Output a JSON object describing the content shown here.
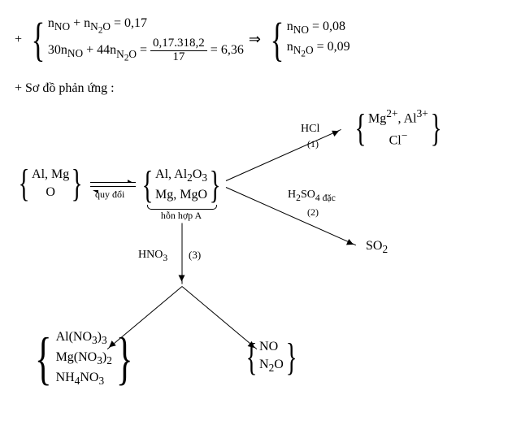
{
  "eq_line": {
    "plus": "+",
    "sys1_top": "n<sub>NO</sub> + n<sub>N<sub>2</sub>O</sub> = 0,17",
    "sys1_bot_lhs": "30n<sub>NO</sub> + 44n<sub>N<sub>2</sub>O</sub> =",
    "frac_num": "0,17.318,2",
    "frac_den": "17",
    "eq_rhs": "= 6,36",
    "imply": "⇒",
    "sys2_top": "n<sub>NO</sub> = 0,08",
    "sys2_bot": "n<sub>N<sub>2</sub>O</sub> = 0,09"
  },
  "section_label": "+ Sơ đồ phản ứng :",
  "nodes": {
    "left_group_l1": "Al, Mg",
    "left_group_l2": "O",
    "quy_doi": "quy đổi",
    "mid_group_l1": "Al, Al<sub>2</sub>O<sub>3</sub>",
    "mid_group_l2": "Mg, MgO",
    "mid_label": "hỗn hợp A",
    "prod_top_l1": "Mg<sup>2+</sup>, Al<sup>3+</sup>",
    "prod_top_l2": "Cl<sup>−</sup>",
    "so2": "SO<sub>2</sub>",
    "salts_l1": "Al(NO<sub>3</sub>)<sub>3</sub>",
    "salts_l2": "Mg(NO<sub>3</sub>)<sub>2</sub>",
    "salts_l3": "NH<sub>4</sub>NO<sub>3</sub>",
    "gases_l1": "NO",
    "gases_l2": "N<sub>2</sub>O"
  },
  "arrows": {
    "hcl": "HCl",
    "num1": "(1)",
    "h2so4": "H<sub>2</sub>SO<sub>4 đặc</sub>",
    "num2": "(2)",
    "hno3": "HNO<sub>3</sub>",
    "num3": "(3)"
  },
  "style": {
    "bg": "#ffffff",
    "fg": "#000000",
    "font": "Times New Roman",
    "base_fontsize": 16,
    "diagram_width": 605,
    "diagram_height": 360
  }
}
